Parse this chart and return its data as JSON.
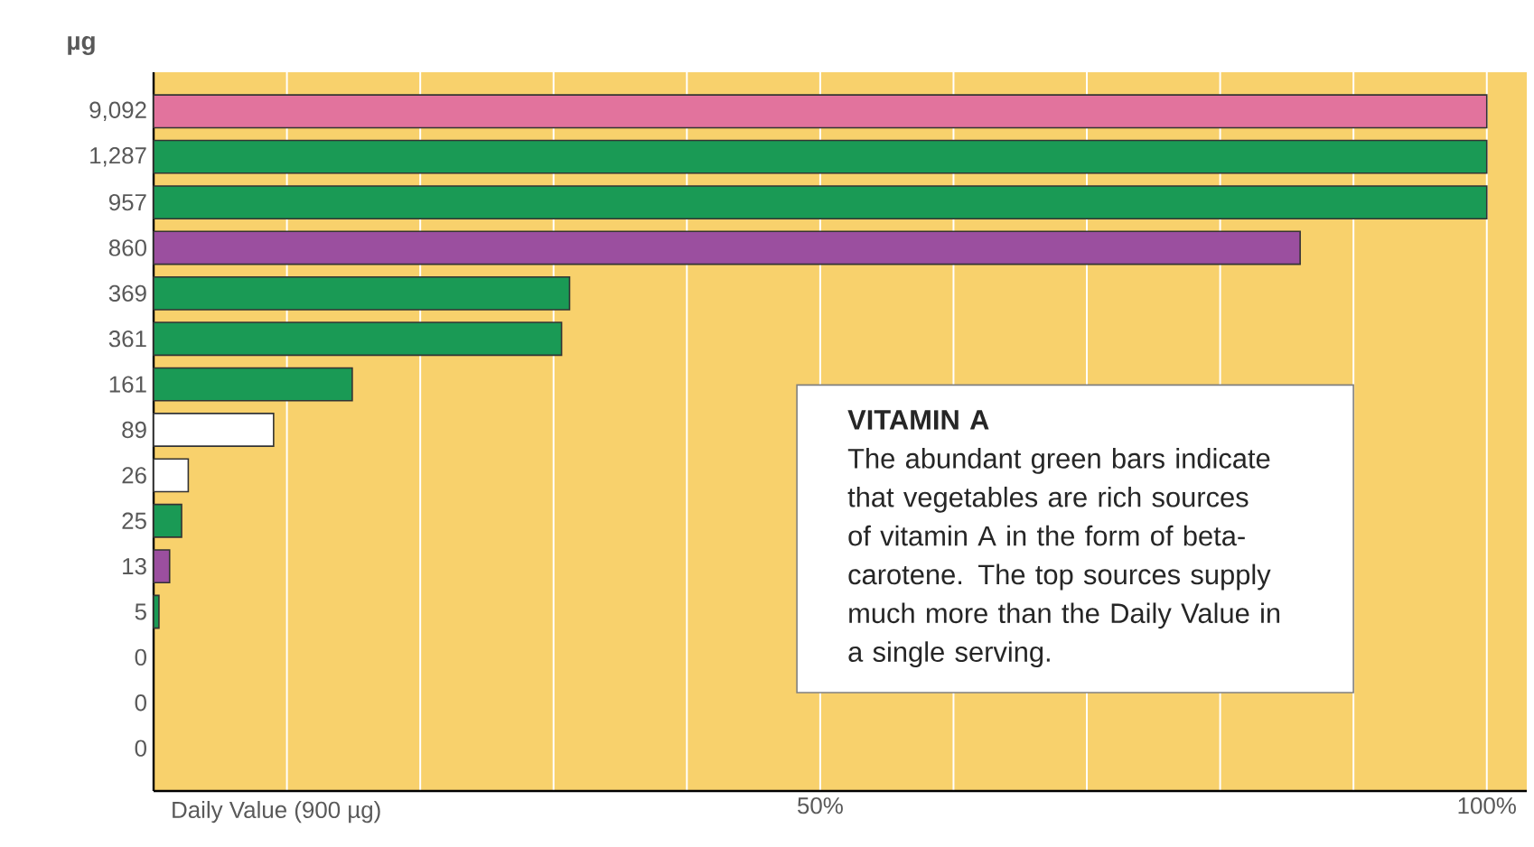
{
  "chart_data": {
    "type": "bar",
    "orientation": "horizontal",
    "ylabel": "µg",
    "xlabel": "Daily Value (900 µg)",
    "categories": [
      "9,092",
      "1,287",
      "957",
      "860",
      "369",
      "361",
      "161",
      "89",
      "26",
      "25",
      "13",
      "5",
      "0",
      "0",
      "0"
    ],
    "values": [
      100,
      100,
      100,
      86,
      31.2,
      30.6,
      14.9,
      9.0,
      2.6,
      2.1,
      1.2,
      0.4,
      0,
      0,
      0
    ],
    "colors": [
      "#e2739d",
      "#1a9a55",
      "#1a9a55",
      "#9b4f9f",
      "#1a9a55",
      "#1a9a55",
      "#1a9a55",
      "#ffffff",
      "#ffffff",
      "#1a9a55",
      "#9b4f9f",
      "#1a9a55",
      "#1a9a55",
      "#1a9a55",
      "#1a9a55"
    ],
    "xlim": [
      0,
      103
    ],
    "xticks": [
      {
        "value": 0,
        "label": null
      },
      {
        "value": 10,
        "label": null
      },
      {
        "value": 20,
        "label": null
      },
      {
        "value": 30,
        "label": null
      },
      {
        "value": 40,
        "label": null
      },
      {
        "value": 50,
        "label": "50%"
      },
      {
        "value": 60,
        "label": null
      },
      {
        "value": 70,
        "label": null
      },
      {
        "value": 80,
        "label": null
      },
      {
        "value": 90,
        "label": null
      },
      {
        "value": 100,
        "label": "100%"
      }
    ],
    "grid": "x",
    "annotations": [
      "VITAMIN A",
      "The abundant green bars indicate that vegetables are rich sources of vitamin A in the form of beta-carotene. The top sources supply much more than the Daily Value in a single serving."
    ]
  }
}
